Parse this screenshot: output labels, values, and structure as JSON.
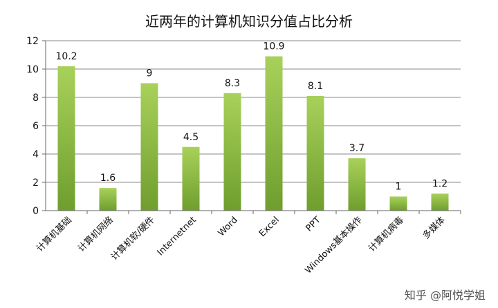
{
  "chart_data": {
    "type": "bar",
    "title": "近两年的计算机知识分值占比分析",
    "categories": [
      "计算机基础",
      "计算机网络",
      "计算机软/硬件",
      "Internetnet",
      "Word",
      "Excel",
      "PPT",
      "Windows基本操作",
      "计算机病毒",
      "多媒体"
    ],
    "values": [
      10.2,
      1.6,
      9,
      4.5,
      8.3,
      10.9,
      8.1,
      3.7,
      1,
      1.2
    ],
    "value_labels": [
      "10.2",
      "1.6",
      "9",
      "4.5",
      "8.3",
      "10.9",
      "8.1",
      "3.7",
      "1",
      "1.2"
    ],
    "ylim": [
      0,
      12
    ],
    "yticks": [
      "0",
      "2",
      "4",
      "6",
      "8",
      "10",
      "12"
    ],
    "xlabel": "",
    "ylabel": "",
    "grid": true,
    "colors": {
      "bar_top": "#a8d15a",
      "bar_bottom": "#6f9e2e",
      "grid": "#8a8a8a",
      "axis": "#666666"
    }
  },
  "watermark": "知乎 @阿悦学姐"
}
